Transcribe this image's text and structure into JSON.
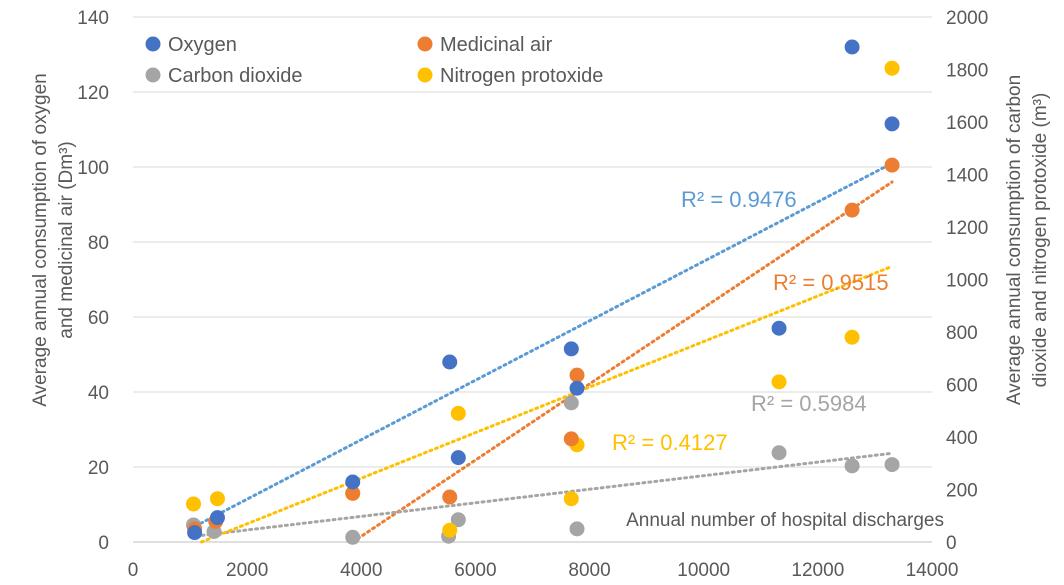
{
  "chart_data": {
    "type": "scatter",
    "title": "",
    "xlabel": "Annual number of hospital discharges",
    "ylabel_left": [
      "Average annual consumption of oxygen",
      "and medicinal air (Dm³)"
    ],
    "ylabel_right": [
      "Average annual consumption of carbon",
      "dioxide and nitrogen protoxide (m³)"
    ],
    "xlim": [
      0,
      14000
    ],
    "ylim_left": [
      0,
      140
    ],
    "ylim_right": [
      0,
      2000
    ],
    "x_ticks": [
      "0",
      "2000",
      "4000",
      "6000",
      "8000",
      "10000",
      "12000",
      "14000"
    ],
    "y_left_ticks": [
      "0",
      "20",
      "40",
      "60",
      "80",
      "100",
      "120",
      "140"
    ],
    "y_right_ticks": [
      "0",
      "200",
      "400",
      "600",
      "800",
      "1000",
      "1200",
      "1400",
      "1600",
      "1800",
      "2000"
    ],
    "grid": "horizontal",
    "legend_position": "top",
    "series": [
      {
        "name": "Oxygen",
        "axis": "left",
        "color": "#4472C4",
        "x": [
          1080,
          1480,
          3850,
          5550,
          5700,
          7680,
          7780,
          11320,
          12600,
          13300
        ],
        "y": [
          2.5,
          6.5,
          16,
          48,
          22.5,
          51.5,
          41,
          57,
          132,
          111.5
        ],
        "trend": {
          "from": [
            1000,
            3.5
          ],
          "to": [
            13300,
            101
          ],
          "r2": "R² = 0.9476",
          "color": "#5B9BD5"
        }
      },
      {
        "name": "Medicinal air",
        "axis": "left",
        "color": "#ED7D31",
        "x": [
          1080,
          1450,
          3850,
          5550,
          7680,
          7780,
          12600,
          13300
        ],
        "y": [
          3.5,
          5.5,
          13,
          12,
          27.5,
          44.5,
          88.5,
          100.5
        ],
        "trend": {
          "from": [
            3850,
            0
          ],
          "to": [
            13300,
            96
          ],
          "r2": "R² = 0.9515",
          "color": "#ED7D31"
        }
      },
      {
        "name": "Carbon dioxide",
        "axis": "right",
        "color": "#A5A5A5",
        "x": [
          1060,
          1420,
          3850,
          5530,
          5700,
          7680,
          7780,
          11320,
          12600,
          13300
        ],
        "y": [
          65,
          40,
          18,
          22,
          85,
          530,
          50,
          340,
          290,
          295
        ],
        "trend": {
          "from": [
            1000,
            20
          ],
          "to": [
            13300,
            338
          ],
          "r2": "R² = 0.4127",
          "color": "#A5A5A5"
        }
      },
      {
        "name": "Nitrogen protoxide",
        "axis": "right",
        "color": "#FFC000",
        "x": [
          1060,
          1480,
          3850,
          5550,
          5700,
          7680,
          7780,
          11320,
          12600,
          13300
        ],
        "y": [
          145,
          165,
          185,
          45,
          490,
          165,
          370,
          610,
          780,
          1805
        ],
        "trend": {
          "from": [
            1200,
            0
          ],
          "to": [
            13300,
            1050
          ],
          "r2": "R² = 0.5984",
          "color": "#FFC000"
        }
      }
    ]
  }
}
